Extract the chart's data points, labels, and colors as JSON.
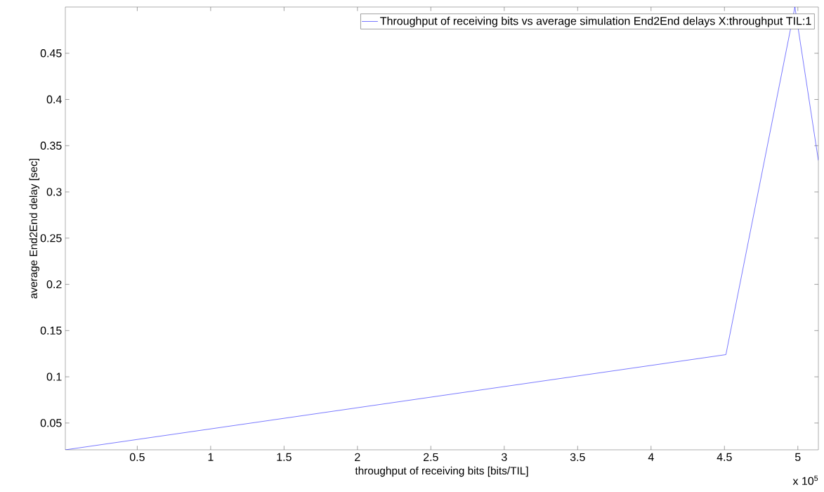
{
  "chart_data": {
    "type": "line",
    "xlabel": "throughput of receiving bits [bits/TIL]",
    "ylabel": "average End2End delay [sec]",
    "annotations": [
      "x 10$^{5}$"
    ],
    "x": [
      0.01,
      4.51,
      4.98,
      5.14
    ],
    "series": [
      {
        "name": "Throughput of receiving bits vs average simulation End2End delays X:throughput TIL:1",
        "color": "#0000ff",
        "values": [
          0.021,
          0.124,
          0.5,
          0.334
        ]
      }
    ],
    "xlim": [
      0.01,
      5.14
    ],
    "ylim": [
      0.021,
      0.5
    ],
    "xticks": [
      0.5,
      1,
      1.5,
      2,
      2.5,
      3,
      3.5,
      4,
      4.5,
      5
    ],
    "yticks": [
      0.05,
      0.1,
      0.15,
      0.2,
      0.25,
      0.3,
      0.35,
      0.4,
      0.45
    ],
    "legend": "top right",
    "grid": false,
    "marker": "none",
    "line_style": "solid"
  }
}
